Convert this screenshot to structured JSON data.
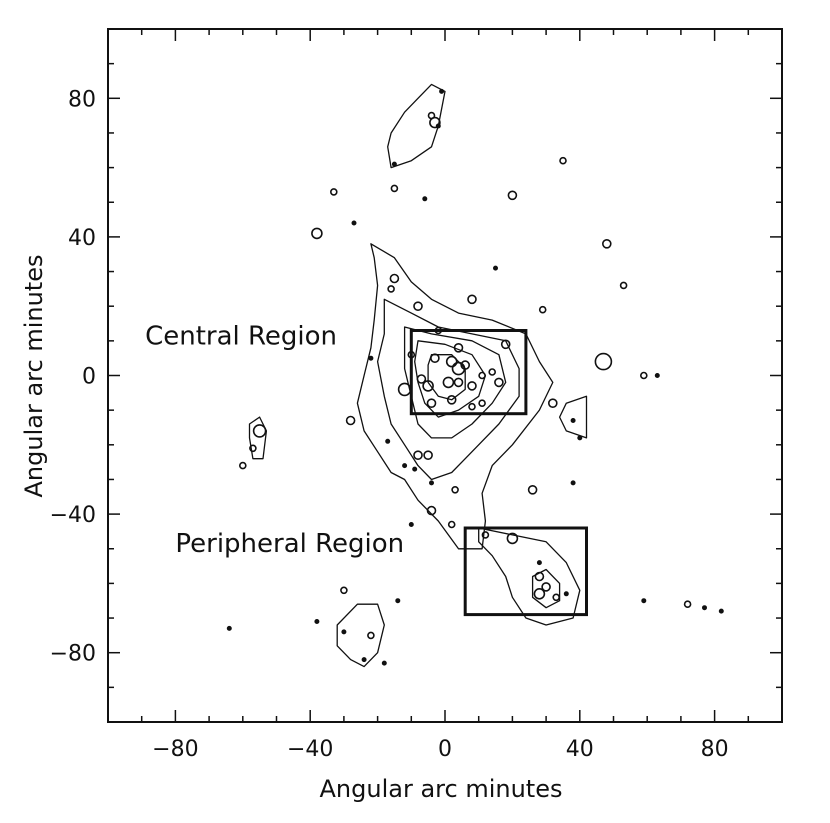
{
  "chart_data": {
    "type": "scatter",
    "title": "",
    "xlabel": "Angular arc minutes",
    "ylabel": "Angular arc minutes",
    "xlim": [
      -100,
      100
    ],
    "ylim": [
      -100,
      100
    ],
    "xticks": [
      -80,
      -40,
      0,
      40,
      80
    ],
    "yticks": [
      -80,
      -40,
      0,
      40,
      80
    ],
    "xtick_labels": [
      "−80",
      "−40",
      "0",
      "40",
      "80"
    ],
    "ytick_labels": [
      "−80",
      "−40",
      "0",
      "40",
      "80"
    ],
    "grid": false,
    "colors": {
      "ink": "#111111",
      "background": "#ffffff"
    },
    "regions": [
      {
        "name": "Central Region",
        "x0": -10,
        "x1": 24,
        "y0": -11,
        "y1": 13,
        "label_x": -89,
        "label_y": 9
      },
      {
        "name": "Peripheral Region",
        "x0": 6,
        "x1": 42,
        "y0": -69,
        "y1": -44,
        "label_x": -80,
        "label_y": -51
      }
    ],
    "contours": [
      [
        [
          -22,
          38
        ],
        [
          -15,
          34
        ],
        [
          -10,
          27
        ],
        [
          -4,
          22
        ],
        [
          4,
          18
        ],
        [
          14,
          16
        ],
        [
          24,
          12
        ],
        [
          28,
          4
        ],
        [
          32,
          -2
        ],
        [
          28,
          -10
        ],
        [
          20,
          -20
        ],
        [
          14,
          -26
        ],
        [
          11,
          -34
        ],
        [
          12,
          -42
        ],
        [
          11,
          -50
        ],
        [
          4,
          -50
        ],
        [
          -2,
          -42
        ],
        [
          -8,
          -36
        ],
        [
          -12,
          -30
        ],
        [
          -16,
          -28
        ],
        [
          -20,
          -22
        ],
        [
          -24,
          -16
        ],
        [
          -26,
          -8
        ],
        [
          -24,
          0
        ],
        [
          -22,
          8
        ],
        [
          -21,
          16
        ],
        [
          -20,
          26
        ],
        [
          -21,
          34
        ]
      ],
      [
        [
          -18,
          22
        ],
        [
          -10,
          18
        ],
        [
          -2,
          14
        ],
        [
          8,
          12
        ],
        [
          18,
          10
        ],
        [
          22,
          2
        ],
        [
          22,
          -6
        ],
        [
          16,
          -14
        ],
        [
          10,
          -20
        ],
        [
          6,
          -24
        ],
        [
          2,
          -28
        ],
        [
          -4,
          -30
        ],
        [
          -8,
          -26
        ],
        [
          -12,
          -20
        ],
        [
          -16,
          -14
        ],
        [
          -18,
          -6
        ],
        [
          -20,
          4
        ],
        [
          -18,
          12
        ]
      ],
      [
        [
          -12,
          14
        ],
        [
          -4,
          12
        ],
        [
          8,
          10
        ],
        [
          16,
          6
        ],
        [
          18,
          -2
        ],
        [
          14,
          -8
        ],
        [
          8,
          -14
        ],
        [
          2,
          -18
        ],
        [
          -4,
          -18
        ],
        [
          -8,
          -14
        ],
        [
          -10,
          -6
        ],
        [
          -12,
          2
        ],
        [
          -12,
          8
        ]
      ],
      [
        [
          -8,
          10
        ],
        [
          0,
          9
        ],
        [
          8,
          6
        ],
        [
          12,
          0
        ],
        [
          10,
          -6
        ],
        [
          4,
          -10
        ],
        [
          -2,
          -12
        ],
        [
          -6,
          -8
        ],
        [
          -8,
          -2
        ],
        [
          -9,
          4
        ]
      ],
      [
        [
          -4,
          6
        ],
        [
          2,
          6
        ],
        [
          6,
          2
        ],
        [
          6,
          -4
        ],
        [
          2,
          -7
        ],
        [
          -2,
          -6
        ],
        [
          -5,
          -2
        ],
        [
          -5,
          3
        ]
      ],
      [
        [
          10,
          -44
        ],
        [
          20,
          -46
        ],
        [
          30,
          -48
        ],
        [
          36,
          -54
        ],
        [
          40,
          -62
        ],
        [
          38,
          -70
        ],
        [
          30,
          -72
        ],
        [
          24,
          -70
        ],
        [
          20,
          -64
        ],
        [
          18,
          -58
        ],
        [
          14,
          -52
        ],
        [
          10,
          -48
        ]
      ],
      [
        [
          26,
          -58
        ],
        [
          30,
          -56
        ],
        [
          34,
          -60
        ],
        [
          34,
          -65
        ],
        [
          30,
          -67
        ],
        [
          26,
          -64
        ]
      ],
      [
        [
          -16,
          70
        ],
        [
          -12,
          76
        ],
        [
          -8,
          80
        ],
        [
          -4,
          84
        ],
        [
          0,
          82
        ],
        [
          -2,
          72
        ],
        [
          -4,
          66
        ],
        [
          -10,
          62
        ],
        [
          -16,
          60
        ],
        [
          -17,
          66
        ]
      ],
      [
        [
          -58,
          -14
        ],
        [
          -55,
          -12
        ],
        [
          -53,
          -16
        ],
        [
          -54,
          -24
        ],
        [
          -57,
          -24
        ],
        [
          -58,
          -18
        ]
      ],
      [
        [
          36,
          -8
        ],
        [
          42,
          -6
        ],
        [
          42,
          -18
        ],
        [
          36,
          -16
        ],
        [
          34,
          -12
        ]
      ],
      [
        [
          -32,
          -72
        ],
        [
          -26,
          -66
        ],
        [
          -20,
          -66
        ],
        [
          -18,
          -72
        ],
        [
          -20,
          -80
        ],
        [
          -24,
          -84
        ],
        [
          -28,
          -82
        ],
        [
          -32,
          -78
        ]
      ]
    ],
    "sources": [
      [
        -1,
        82,
        2
      ],
      [
        -4,
        75,
        3
      ],
      [
        -3,
        73,
        5
      ],
      [
        -2,
        72,
        2
      ],
      [
        -15,
        61,
        2
      ],
      [
        -33,
        53,
        3
      ],
      [
        -15,
        54,
        3
      ],
      [
        -6,
        51,
        2
      ],
      [
        20,
        52,
        4
      ],
      [
        35,
        62,
        3
      ],
      [
        -38,
        41,
        5
      ],
      [
        -27,
        44,
        2
      ],
      [
        48,
        38,
        4
      ],
      [
        15,
        31,
        2
      ],
      [
        -15,
        28,
        4
      ],
      [
        -16,
        25,
        3
      ],
      [
        53,
        26,
        3
      ],
      [
        -8,
        20,
        4
      ],
      [
        8,
        22,
        4
      ],
      [
        29,
        19,
        3
      ],
      [
        -2,
        13,
        3
      ],
      [
        4,
        8,
        4
      ],
      [
        18,
        9,
        4
      ],
      [
        -10,
        6,
        3
      ],
      [
        -3,
        5,
        4
      ],
      [
        2,
        4,
        5
      ],
      [
        4,
        2,
        6
      ],
      [
        6,
        3,
        4
      ],
      [
        -7,
        -1,
        4
      ],
      [
        -5,
        -3,
        5
      ],
      [
        1,
        -2,
        5
      ],
      [
        4,
        -2,
        4
      ],
      [
        8,
        -3,
        4
      ],
      [
        11,
        0,
        3
      ],
      [
        14,
        1,
        3
      ],
      [
        16,
        -2,
        4
      ],
      [
        -12,
        -4,
        6
      ],
      [
        -4,
        -8,
        4
      ],
      [
        2,
        -7,
        4
      ],
      [
        8,
        -9,
        3
      ],
      [
        11,
        -8,
        3
      ],
      [
        32,
        -8,
        4
      ],
      [
        47,
        4,
        8
      ],
      [
        59,
        0,
        3
      ],
      [
        63,
        0,
        2
      ],
      [
        -28,
        -13,
        4
      ],
      [
        -22,
        5,
        2
      ],
      [
        -8,
        -23,
        4
      ],
      [
        -5,
        -23,
        4
      ],
      [
        -9,
        -27,
        2
      ],
      [
        -4,
        -31,
        2
      ],
      [
        -12,
        -26,
        2
      ],
      [
        -17,
        -19,
        2
      ],
      [
        -10,
        -43,
        2
      ],
      [
        -4,
        -39,
        4
      ],
      [
        2,
        -43,
        3
      ],
      [
        3,
        -33,
        3
      ],
      [
        26,
        -33,
        4
      ],
      [
        38,
        -31,
        2
      ],
      [
        12,
        -46,
        3
      ],
      [
        20,
        -47,
        5
      ],
      [
        28,
        -54,
        2
      ],
      [
        28,
        -58,
        4
      ],
      [
        28,
        -63,
        5
      ],
      [
        30,
        -61,
        4
      ],
      [
        33,
        -64,
        3
      ],
      [
        36,
        -63,
        2
      ],
      [
        -55,
        -16,
        6
      ],
      [
        -57,
        -21,
        3
      ],
      [
        -60,
        -26,
        3
      ],
      [
        -14,
        -65,
        2
      ],
      [
        -30,
        -62,
        3
      ],
      [
        -38,
        -71,
        2
      ],
      [
        -30,
        -74,
        2
      ],
      [
        -22,
        -75,
        3
      ],
      [
        -24,
        -82,
        2
      ],
      [
        -18,
        -83,
        2
      ],
      [
        -64,
        -73,
        2
      ],
      [
        59,
        -65,
        2
      ],
      [
        72,
        -66,
        3
      ],
      [
        77,
        -67,
        2
      ],
      [
        82,
        -68,
        2
      ],
      [
        40,
        -18,
        2
      ],
      [
        38,
        -13,
        2
      ]
    ]
  }
}
